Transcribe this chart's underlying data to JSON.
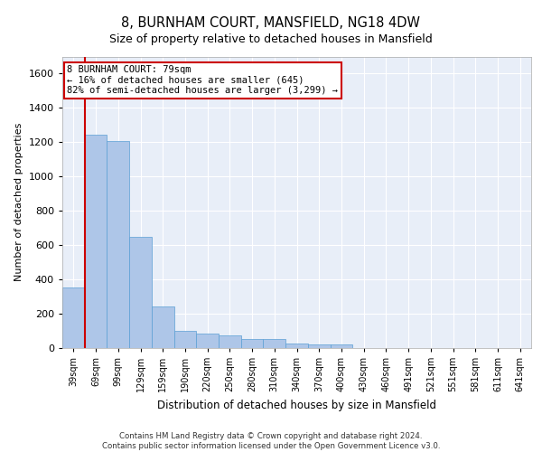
{
  "title1": "8, BURNHAM COURT, MANSFIELD, NG18 4DW",
  "title2": "Size of property relative to detached houses in Mansfield",
  "xlabel": "Distribution of detached houses by size in Mansfield",
  "ylabel": "Number of detached properties",
  "categories": [
    "39sqm",
    "69sqm",
    "99sqm",
    "129sqm",
    "159sqm",
    "190sqm",
    "220sqm",
    "250sqm",
    "280sqm",
    "310sqm",
    "340sqm",
    "370sqm",
    "400sqm",
    "430sqm",
    "460sqm",
    "491sqm",
    "521sqm",
    "551sqm",
    "581sqm",
    "611sqm",
    "641sqm"
  ],
  "values": [
    355,
    1245,
    1205,
    650,
    245,
    100,
    85,
    75,
    55,
    55,
    28,
    20,
    20,
    0,
    0,
    0,
    0,
    0,
    0,
    0,
    0
  ],
  "bar_color": "#aec6e8",
  "bar_edge_color": "#5a9fd4",
  "background_color": "#e8eef8",
  "grid_color": "#ffffff",
  "annotation_line1": "8 BURNHAM COURT: 79sqm",
  "annotation_line2": "← 16% of detached houses are smaller (645)",
  "annotation_line3": "82% of semi-detached houses are larger (3,299) →",
  "annotation_box_color": "#ffffff",
  "annotation_box_edge_color": "#cc0000",
  "vline_color": "#cc0000",
  "vline_x": 0.5,
  "ylim": [
    0,
    1700
  ],
  "yticks": [
    0,
    200,
    400,
    600,
    800,
    1000,
    1200,
    1400,
    1600
  ],
  "footer1": "Contains HM Land Registry data © Crown copyright and database right 2024.",
  "footer2": "Contains public sector information licensed under the Open Government Licence v3.0."
}
